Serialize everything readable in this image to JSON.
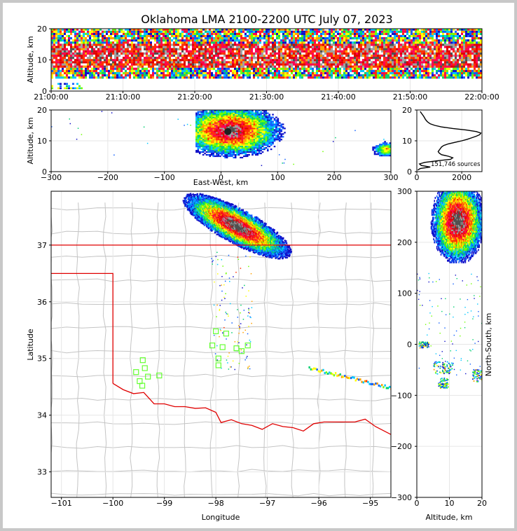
{
  "chart_data": [
    {
      "id": "time_height",
      "type": "heatmap",
      "title": "Oklahoma LMA 2100-2200 UTC July 07, 2023",
      "ylabel": "Altitude, km",
      "x_ticks": [
        "21:00:00",
        "21:10:00",
        "21:20:00",
        "21:30:00",
        "21:40:00",
        "21:50:00",
        "22:00:00"
      ],
      "y_ticks": [
        "0",
        "10",
        "20"
      ],
      "xlim": [
        "21:00:00",
        "22:00:00"
      ],
      "ylim": [
        0,
        20
      ],
      "dense_band_km": [
        4,
        20
      ],
      "core_band_km": [
        7,
        15
      ]
    },
    {
      "id": "ew_altitude",
      "type": "heatmap",
      "xlabel": "East-West, km",
      "ylabel": "Altitude, km",
      "x_ticks": [
        "−300",
        "−200",
        "−100",
        "0",
        "100",
        "200",
        "300"
      ],
      "y_ticks": [
        "0",
        "10",
        "20"
      ],
      "xlim": [
        -300,
        300
      ],
      "ylim": [
        0,
        20
      ],
      "blobs": [
        {
          "x_center": 15,
          "alt_center": 13,
          "x_extent": [
            -45,
            130
          ],
          "alt_extent": [
            3,
            20
          ]
        },
        {
          "x_center": 290,
          "alt_center": 7,
          "x_extent": [
            255,
            300
          ],
          "alt_extent": [
            5,
            10
          ]
        }
      ]
    },
    {
      "id": "altitude_histogram",
      "type": "line",
      "x_ticks": [
        "0",
        "2000"
      ],
      "y_ticks": [
        "0",
        "10",
        "20"
      ],
      "xlim": [
        0,
        2900
      ],
      "ylim": [
        0,
        20
      ],
      "annotation": "151,746 sources",
      "alt": [
        0.5,
        1.0,
        1.5,
        2.0,
        2.5,
        3.0,
        3.5,
        4.0,
        4.5,
        5.0,
        5.5,
        6.0,
        6.5,
        7.0,
        7.5,
        8.0,
        8.5,
        9.0,
        9.5,
        10.0,
        10.5,
        11.0,
        11.5,
        12.0,
        12.5,
        13.0,
        13.5,
        14.0,
        14.5,
        15.0,
        15.5,
        16.0,
        16.5,
        17.0,
        17.5,
        18.0,
        18.5,
        19.0,
        19.5
      ],
      "count": [
        40,
        150,
        600,
        200,
        120,
        350,
        900,
        1500,
        1600,
        1400,
        1100,
        1000,
        950,
        1000,
        1050,
        1100,
        1200,
        1400,
        1700,
        2000,
        2250,
        2450,
        2650,
        2800,
        2850,
        2650,
        2200,
        1600,
        1100,
        800,
        600,
        500,
        430,
        380,
        340,
        300,
        250,
        200,
        150
      ]
    },
    {
      "id": "map",
      "type": "scatter",
      "xlabel": "Longitude",
      "ylabel": "Latitude",
      "x_ticks": [
        "−101",
        "−100",
        "−99",
        "−98",
        "−97",
        "−96",
        "−95"
      ],
      "y_ticks": [
        "33",
        "34",
        "35",
        "36",
        "37"
      ],
      "xlim": [
        -101.2,
        -94.6
      ],
      "ylim": [
        32.55,
        37.95
      ],
      "stations": [
        {
          "lon": -99.42,
          "lat": 34.97
        },
        {
          "lon": -99.38,
          "lat": 34.83
        },
        {
          "lon": -99.55,
          "lat": 34.76
        },
        {
          "lon": -99.32,
          "lat": 34.68
        },
        {
          "lon": -99.1,
          "lat": 34.7
        },
        {
          "lon": -99.48,
          "lat": 34.6
        },
        {
          "lon": -99.43,
          "lat": 34.52
        },
        {
          "lon": -98.0,
          "lat": 35.48
        },
        {
          "lon": -97.8,
          "lat": 35.44
        },
        {
          "lon": -98.07,
          "lat": 35.23
        },
        {
          "lon": -97.87,
          "lat": 35.2
        },
        {
          "lon": -97.6,
          "lat": 35.18
        },
        {
          "lon": -97.38,
          "lat": 35.23
        },
        {
          "lon": -97.5,
          "lat": 35.13
        },
        {
          "lon": -97.95,
          "lat": 35.0
        },
        {
          "lon": -97.95,
          "lat": 34.88
        }
      ]
    },
    {
      "id": "ns_altitude",
      "type": "heatmap",
      "xlabel": "Altitude, km",
      "ylabel": "North-South, km",
      "x_ticks": [
        "0",
        "10",
        "20"
      ],
      "y_ticks": [
        "−300",
        "−200",
        "−100",
        "0",
        "100",
        "200",
        "300"
      ],
      "xlim": [
        0,
        20
      ],
      "ylim": [
        -300,
        300
      ]
    }
  ]
}
